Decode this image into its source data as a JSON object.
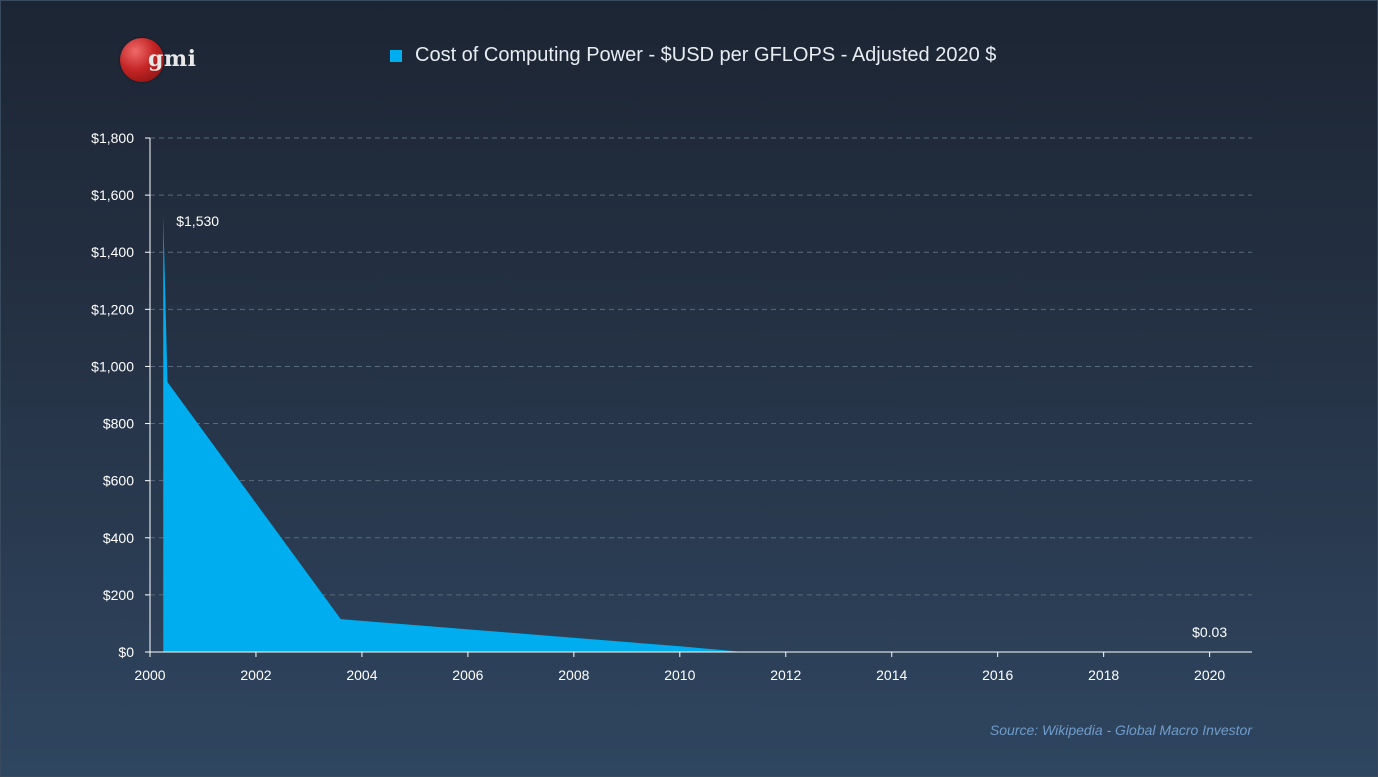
{
  "logo": {
    "text": "gmi"
  },
  "colors": {
    "series": "#00aeef",
    "grid": "#5a6a7e",
    "axis": "#ffffff",
    "source": "#6f9ccc"
  },
  "chart_data": {
    "type": "area",
    "title": "Cost of Computing Power - $USD per GFLOPS - Adjusted 2020 $",
    "xlabel": "",
    "ylabel": "",
    "xlim": [
      2000,
      2020.8
    ],
    "ylim": [
      0,
      1800
    ],
    "x_ticks": [
      2000,
      2002,
      2004,
      2006,
      2008,
      2010,
      2012,
      2014,
      2016,
      2018,
      2020
    ],
    "y_ticks": [
      0,
      200,
      400,
      600,
      800,
      1000,
      1200,
      1400,
      1600,
      1800
    ],
    "y_tick_labels": [
      "$0",
      "$200",
      "$400",
      "$600",
      "$800",
      "$1,000",
      "$1,200",
      "$1,400",
      "$1,600",
      "$1,800"
    ],
    "grid": "horizontal dashed",
    "legend": "top-center",
    "series": [
      {
        "name": "Cost of Computing Power - $USD per GFLOPS - Adjusted 2020 $",
        "x": [
          2000.25,
          2000.33,
          2003.6,
          2010.0,
          2011.2,
          2020.0
        ],
        "y": [
          1530,
          945,
          115,
          20,
          0.03,
          0.03
        ]
      }
    ],
    "annotations": [
      {
        "text": "$1,530",
        "x": 2000.25,
        "y": 1530
      },
      {
        "text": "$0.03",
        "x": 2020.0,
        "y": 0.03
      }
    ]
  },
  "source": "Source: Wikipedia - Global Macro Investor"
}
